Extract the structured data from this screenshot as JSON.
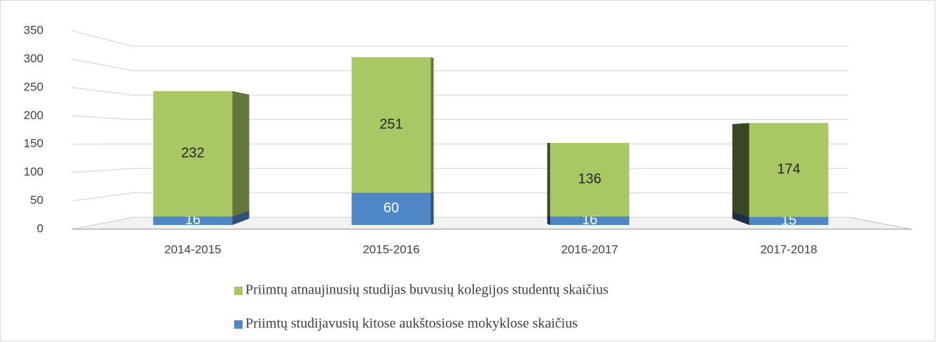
{
  "chart_data": {
    "type": "bar3d_stacked",
    "categories": [
      "2014-2015",
      "2015-2016",
      "2016-2017",
      "2017-2018"
    ],
    "series": [
      {
        "name": "Priimtų atnaujinusių studijas buvusių kolegijos studentų skaičius",
        "color": "#a9c764",
        "values": [
          232,
          251,
          136,
          174
        ]
      },
      {
        "name": "Priimtų studijavusių kitose aukštosiose mokyklose skaičius",
        "color": "#4f86c6",
        "values": [
          16,
          60,
          16,
          15
        ]
      }
    ],
    "ylim": [
      0,
      350
    ],
    "yticks": [
      0,
      50,
      100,
      150,
      200,
      250,
      300,
      350
    ],
    "grid": true
  }
}
